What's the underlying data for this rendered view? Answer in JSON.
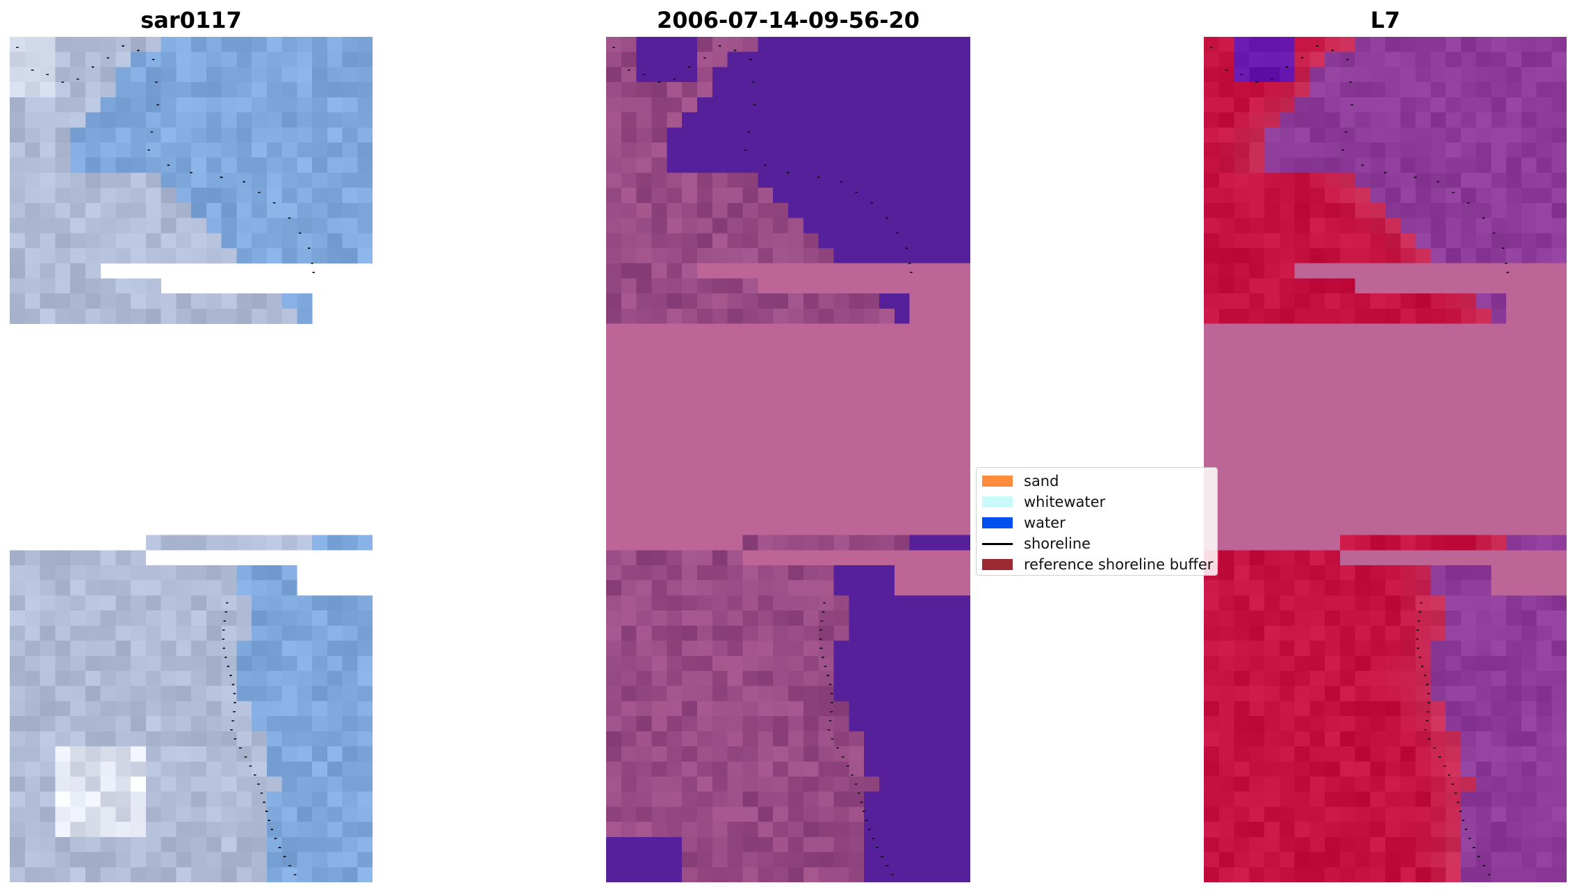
{
  "titles": {
    "left": "sar0117",
    "center": "2006-07-14-09-56-20",
    "right": "L7"
  },
  "legend": {
    "items": [
      {
        "label": "sand",
        "color": "#ff8c3c",
        "type": "patch"
      },
      {
        "label": "whitewater",
        "color": "#c8fafa",
        "type": "patch"
      },
      {
        "label": "water",
        "color": "#0050f0",
        "type": "patch"
      },
      {
        "label": "shoreline",
        "color": "#000000",
        "type": "line"
      },
      {
        "label": "reference shoreline buffer",
        "color": "#9b2a35",
        "type": "patch"
      }
    ]
  },
  "colors": {
    "rgb_water": "#7fa9dd",
    "rgb_land": "#b0bcd6",
    "rgb_bright": "#eef0f8",
    "classified_background": "#bd6596",
    "classified_water": "#552099",
    "classified_land": "#8e447f",
    "ndwi_background": "#bd6596",
    "ndwi_land": "#c4113f",
    "ndwi_water": "#8c3b98",
    "shoreline_dots": "#000000"
  }
}
